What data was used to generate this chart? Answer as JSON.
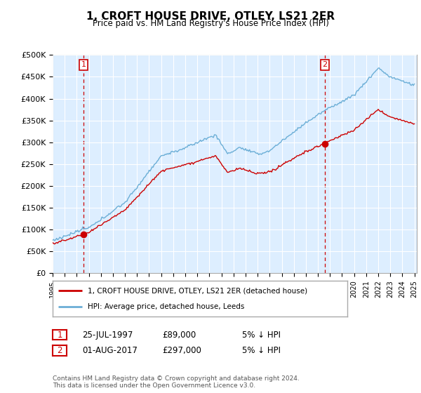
{
  "title": "1, CROFT HOUSE DRIVE, OTLEY, LS21 2ER",
  "subtitle": "Price paid vs. HM Land Registry's House Price Index (HPI)",
  "legend_line1": "1, CROFT HOUSE DRIVE, OTLEY, LS21 2ER (detached house)",
  "legend_line2": "HPI: Average price, detached house, Leeds",
  "transaction1_date": "25-JUL-1997",
  "transaction1_price": "£89,000",
  "transaction1_hpi": "5% ↓ HPI",
  "transaction2_date": "01-AUG-2017",
  "transaction2_price": "£297,000",
  "transaction2_hpi": "5% ↓ HPI",
  "footer": "Contains HM Land Registry data © Crown copyright and database right 2024.\nThis data is licensed under the Open Government Licence v3.0.",
  "hpi_color": "#6baed6",
  "price_color": "#cc0000",
  "marker_color": "#cc0000",
  "dashed_line_color": "#cc0000",
  "ylim_min": 0,
  "ylim_max": 500000,
  "background_color": "#ffffff",
  "plot_bg_color": "#ddeeff",
  "grid_color": "#ffffff",
  "sale1_year": 1997.56,
  "sale1_value": 89000,
  "sale2_year": 2017.58,
  "sale2_value": 297000
}
